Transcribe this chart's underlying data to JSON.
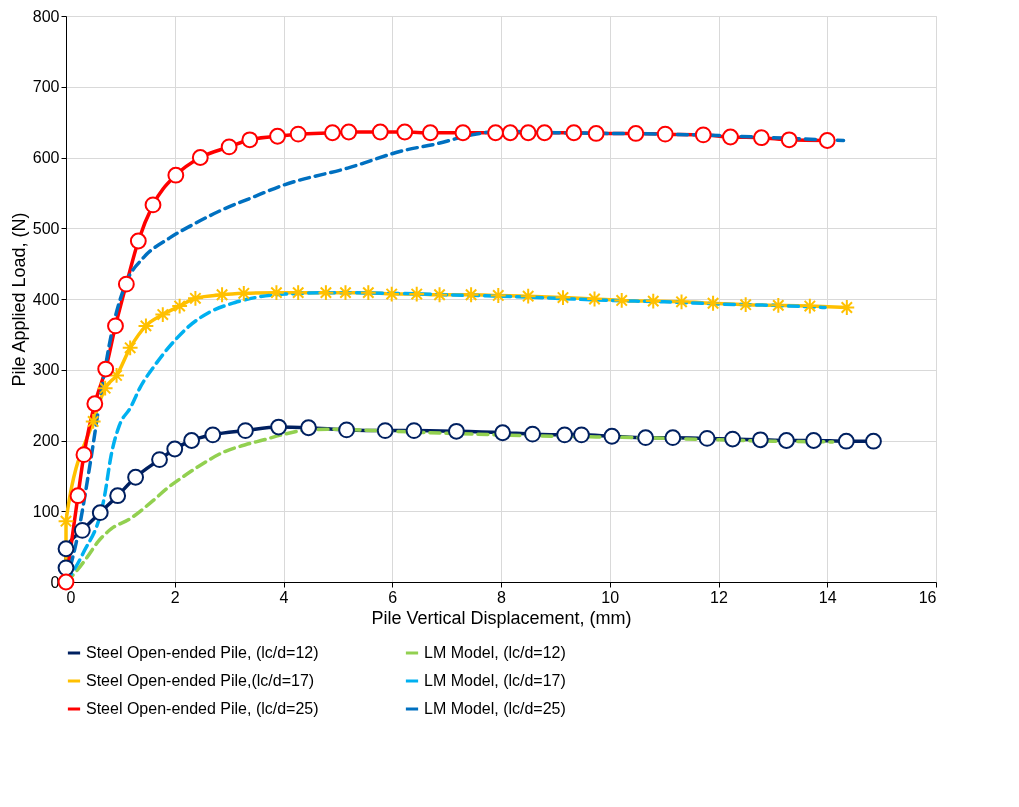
{
  "chart_data": {
    "type": "line",
    "xlabel": "Pile Vertical Displacement, (mm)",
    "ylabel": "Pile Applied Load, (N)",
    "xlim": [
      0,
      16
    ],
    "xticks": [
      0,
      2,
      4,
      6,
      8,
      10,
      12,
      14,
      16
    ],
    "ylim": [
      0,
      800
    ],
    "yticks": [
      0,
      100,
      200,
      300,
      400,
      500,
      600,
      700,
      800
    ],
    "grid": true,
    "legend": "bottom",
    "series": [
      {
        "name": "Steel Open-ended Pile, (lc/d=12)",
        "color": "#002060",
        "marker": "circle",
        "line_style": "solid",
        "x": [
          0,
          0,
          0.3,
          0.63,
          0.95,
          1.28,
          1.72,
          2.0,
          2.31,
          2.7,
          3.3,
          3.91,
          4.46,
          5.16,
          5.87,
          6.4,
          7.18,
          8.03,
          8.58,
          9.17,
          9.48,
          10.04,
          10.66,
          11.16,
          11.79,
          12.26,
          12.77,
          13.25,
          13.75,
          14.35,
          14.85
        ],
        "values": [
          20,
          47,
          73,
          98,
          122,
          148,
          173,
          188,
          200,
          208,
          214,
          219,
          218,
          215,
          214,
          214,
          213,
          211,
          209,
          208,
          208,
          206,
          204,
          204,
          203,
          202,
          201,
          200,
          200,
          199,
          199
        ]
      },
      {
        "name": "LM Model, (lc/d=12)",
        "color": "#92d050",
        "marker": "none",
        "line_style": "dashed",
        "x": [
          0,
          0.07,
          0.37,
          0.59,
          0.83,
          1.17,
          1.6,
          1.87,
          2.14,
          2.45,
          2.91,
          3.3,
          3.64,
          3.97,
          4.46,
          4.89,
          6.0,
          7.5,
          9.0,
          10.5,
          12.0,
          13.0,
          14.1
        ],
        "values": [
          0,
          5,
          33,
          57,
          75,
          89,
          115,
          133,
          148,
          164,
          184,
          194,
          201,
          208,
          215,
          216,
          213,
          209,
          206,
          204,
          201,
          199,
          198
        ]
      },
      {
        "name": "Steel Open-ended Pile,(lc/d=17)",
        "color": "#ffc000",
        "marker": "cross",
        "line_style": "solid",
        "x": [
          0,
          0,
          0.5,
          0.72,
          0.93,
          1.18,
          1.47,
          1.78,
          2.09,
          2.38,
          2.87,
          3.27,
          3.87,
          4.27,
          4.78,
          5.14,
          5.56,
          5.99,
          6.45,
          6.87,
          7.45,
          7.95,
          8.5,
          9.14,
          9.72,
          10.22,
          10.8,
          11.32,
          11.9,
          12.5,
          13.1,
          13.68,
          14.36
        ],
        "values": [
          0,
          86,
          227,
          274,
          292,
          331,
          362,
          378,
          390,
          401,
          406,
          408,
          409,
          409,
          409,
          409,
          409,
          407,
          407,
          406,
          406,
          405,
          404,
          402,
          400,
          398,
          397,
          396,
          394,
          392,
          391,
          390,
          388
        ]
      },
      {
        "name": "LM Model, (lc/d=17)",
        "color": "#00b0f0",
        "marker": "none",
        "line_style": "dashed",
        "x": [
          0,
          0.31,
          0.71,
          0.83,
          0.98,
          1.19,
          1.35,
          1.65,
          2.02,
          2.27,
          2.63,
          3.11,
          3.48,
          4.03,
          5.0,
          6.0,
          7.0,
          8.0,
          9.0,
          10.0,
          11.0,
          12.0,
          13.0,
          13.96
        ],
        "values": [
          0,
          40,
          122,
          179,
          221,
          247,
          273,
          308,
          343,
          362,
          381,
          395,
          402,
          407,
          409,
          408,
          406,
          404,
          401,
          398,
          396,
          393,
          391,
          388
        ]
      },
      {
        "name": "Steel Open-ended Pile, (lc/d=25)",
        "color": "#ff0000",
        "marker": "circle",
        "line_style": "solid",
        "x": [
          0,
          0.22,
          0.33,
          0.53,
          0.73,
          0.91,
          1.11,
          1.33,
          1.6,
          2.02,
          2.47,
          3.0,
          3.38,
          3.89,
          4.27,
          4.9,
          5.2,
          5.78,
          6.23,
          6.7,
          7.3,
          7.9,
          8.17,
          8.5,
          8.8,
          9.34,
          9.75,
          10.48,
          11.02,
          11.72,
          12.22,
          12.79,
          13.3,
          14.0
        ],
        "values": [
          0,
          122,
          180,
          252,
          301,
          362,
          421,
          482,
          533,
          575,
          600,
          615,
          625,
          630,
          633,
          635,
          636,
          636,
          636,
          635,
          635,
          635,
          635,
          635,
          635,
          635,
          634,
          634,
          633,
          632,
          629,
          628,
          625,
          624
        ]
      },
      {
        "name": "LM Model, (lc/d=25)",
        "color": "#0070c0",
        "marker": "none",
        "line_style": "dashed",
        "x": [
          0,
          0.2,
          0.45,
          0.65,
          0.87,
          1.1,
          1.42,
          1.9,
          2.33,
          2.87,
          3.41,
          4.0,
          5.18,
          6.27,
          6.74,
          7.47,
          7.95,
          9.0,
          10.0,
          11.0,
          12.0,
          13.0,
          14.3
        ],
        "values": [
          0,
          60,
          170,
          270,
          363,
          422,
          458,
          486,
          505,
          526,
          543,
          561,
          585,
          611,
          618,
          632,
          637,
          635,
          634,
          633,
          631,
          628,
          624
        ]
      }
    ]
  }
}
